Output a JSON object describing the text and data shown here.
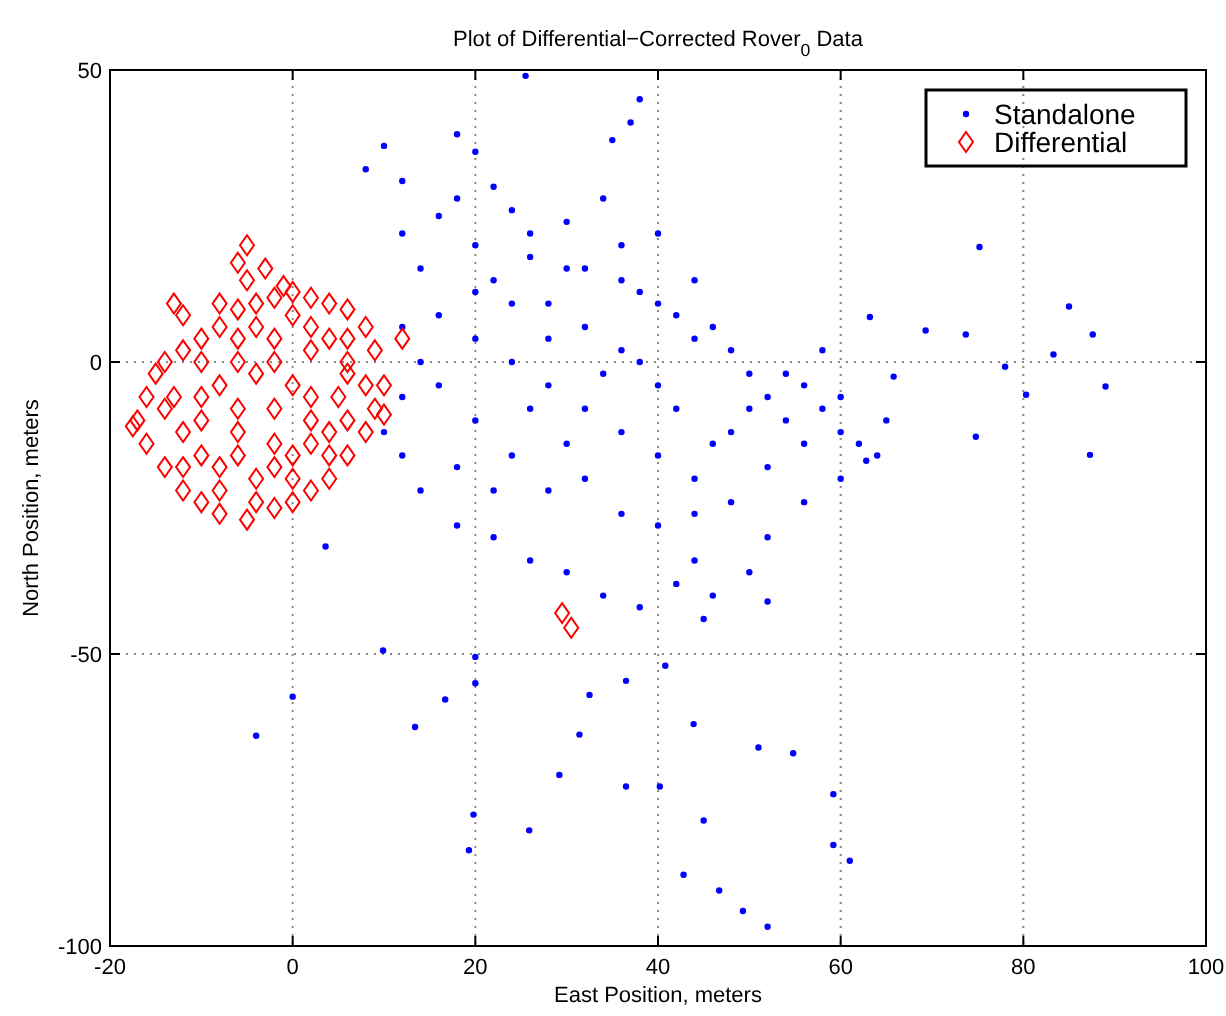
{
  "chart_data": {
    "type": "scatter",
    "title": "Plot of Differential−Corrected Rover$_{0}$ Data",
    "xlabel": "East Position, meters",
    "ylabel": "North Position, meters",
    "xlim": [
      -20,
      100
    ],
    "xticks": [
      -20,
      0,
      20,
      40,
      60,
      80,
      100
    ],
    "ylim": [
      -100,
      50
    ],
    "yticks": [
      -100,
      -50,
      0,
      50
    ],
    "grid": true,
    "legend": "top right",
    "series": [
      {
        "name": "Standalone",
        "color": "#0000ff",
        "marker": "circle",
        "x": [
          12,
          14,
          16,
          18,
          20,
          22,
          24,
          26,
          28,
          30,
          32,
          34,
          36,
          38,
          40,
          42,
          44,
          46,
          48,
          50,
          52,
          54,
          56,
          58,
          60,
          62,
          60,
          56,
          52,
          50,
          46,
          44,
          42,
          38,
          34,
          30,
          26,
          22,
          18,
          14,
          12,
          10,
          12,
          14,
          12,
          16,
          20,
          24,
          28,
          32,
          36,
          40,
          44,
          48,
          52,
          56,
          20,
          24,
          28,
          32,
          36,
          40,
          44,
          48,
          40,
          36,
          32,
          28,
          24,
          20,
          16,
          18,
          22,
          26,
          30,
          34,
          38,
          42,
          46,
          50,
          54,
          44,
          40,
          36,
          30,
          26,
          22,
          20,
          18,
          10,
          8,
          12,
          25.5,
          38,
          37,
          35,
          45,
          52,
          64,
          65,
          58,
          60,
          63.2,
          69.3,
          73.7,
          75.2,
          85,
          87.6,
          89,
          78,
          80.3,
          74.8,
          87.3,
          83.3,
          65.8,
          62.8,
          20,
          20,
          16.7,
          13.4,
          19.8,
          19.3,
          25.9,
          29.2,
          32.5,
          31.4,
          36.5,
          40.2,
          45,
          42.8,
          46.7,
          49.3,
          52,
          43.9,
          51,
          54.8,
          59.2,
          61,
          59.2,
          40.8,
          36.5,
          9.9,
          0,
          -4,
          3.6
        ],
        "values": [
          22,
          16,
          25,
          28,
          20,
          14,
          26,
          18,
          10,
          24,
          16,
          28,
          20,
          12,
          22,
          8,
          14,
          6,
          2,
          -2,
          -6,
          -10,
          -4,
          -8,
          -12,
          -14,
          -20,
          -24,
          -30,
          -36,
          -40,
          -34,
          -38,
          -42,
          -40,
          -36,
          -34,
          -30,
          -28,
          -22,
          -16,
          -12,
          -6,
          0,
          6,
          8,
          4,
          0,
          -4,
          -8,
          -12,
          -16,
          -20,
          -24,
          -18,
          -14,
          -10,
          -16,
          -22,
          -20,
          -26,
          -28,
          -26,
          -12,
          -4,
          2,
          6,
          4,
          10,
          12,
          -4,
          -18,
          -22,
          -8,
          -14,
          -2,
          0,
          -8,
          -14,
          -8,
          -2,
          4,
          10,
          14,
          16,
          22,
          30,
          36,
          39,
          37,
          33,
          31,
          49,
          45,
          41,
          38,
          -44,
          -41,
          -16,
          -10,
          2,
          -6,
          7.7,
          5.4,
          4.7,
          19.7,
          9.5,
          4.7,
          -4.2,
          -0.8,
          -5.6,
          -12.8,
          -15.9,
          1.3,
          -2.5,
          -16.9,
          -50.5,
          -55,
          -57.8,
          -62.5,
          -77.5,
          -83.6,
          -80.2,
          -70.7,
          -57,
          -63.8,
          -72.7,
          -72.7,
          -78.5,
          -87.8,
          -90.5,
          -94,
          -96.7,
          -62,
          -66,
          -67,
          -74,
          -85.4,
          -82.7,
          -52,
          -54.6,
          -49.4,
          -57.3,
          -64,
          -31.6
        ]
      },
      {
        "name": "Differential",
        "color": "#ff0000",
        "marker": "diamond",
        "x": [
          -17,
          -17.5,
          -15,
          -14,
          -12,
          -10,
          -8,
          -5,
          -2,
          0,
          2,
          4,
          6,
          8,
          9,
          10,
          9,
          8,
          6,
          4,
          2,
          0,
          -2,
          -4,
          -6,
          -8,
          -10,
          -12,
          -14,
          -13,
          -10,
          -6,
          -2,
          2,
          5,
          0,
          -4,
          -8,
          -6,
          -2,
          2,
          4,
          -8,
          -4,
          0,
          -10,
          -12,
          -5,
          -6,
          -5,
          -3,
          -1,
          6,
          12,
          10,
          -16,
          -13,
          29.5,
          30.5,
          -10,
          -6,
          -2,
          2,
          6,
          -14,
          -8,
          -4,
          4,
          -12,
          -10,
          -6,
          -2,
          2,
          6,
          -4,
          0,
          -8,
          4,
          -16,
          8,
          0,
          -6,
          -2,
          2,
          6,
          -12
        ],
        "values": [
          -10,
          -11,
          -2,
          -18,
          -22,
          -24,
          -26,
          -27,
          -25,
          -24,
          -22,
          -20,
          -16,
          -12,
          -8,
          -4,
          2,
          6,
          9,
          10,
          11,
          12,
          11,
          10,
          9,
          6,
          4,
          2,
          0,
          -6,
          -10,
          -12,
          -14,
          -10,
          -6,
          -4,
          -2,
          -4,
          0,
          4,
          2,
          -12,
          -18,
          -20,
          -16,
          -16,
          -12,
          14,
          17,
          20,
          16,
          13,
          4,
          4,
          -9,
          -14,
          10,
          -43,
          -45.5,
          -6,
          -8,
          -8,
          -6,
          -2,
          -8,
          -22,
          -24,
          -16,
          -18,
          0,
          4,
          0,
          6,
          0,
          6,
          8,
          10,
          4,
          -6,
          -4,
          -20,
          -16,
          -18,
          -14,
          -10,
          8
        ]
      }
    ]
  }
}
